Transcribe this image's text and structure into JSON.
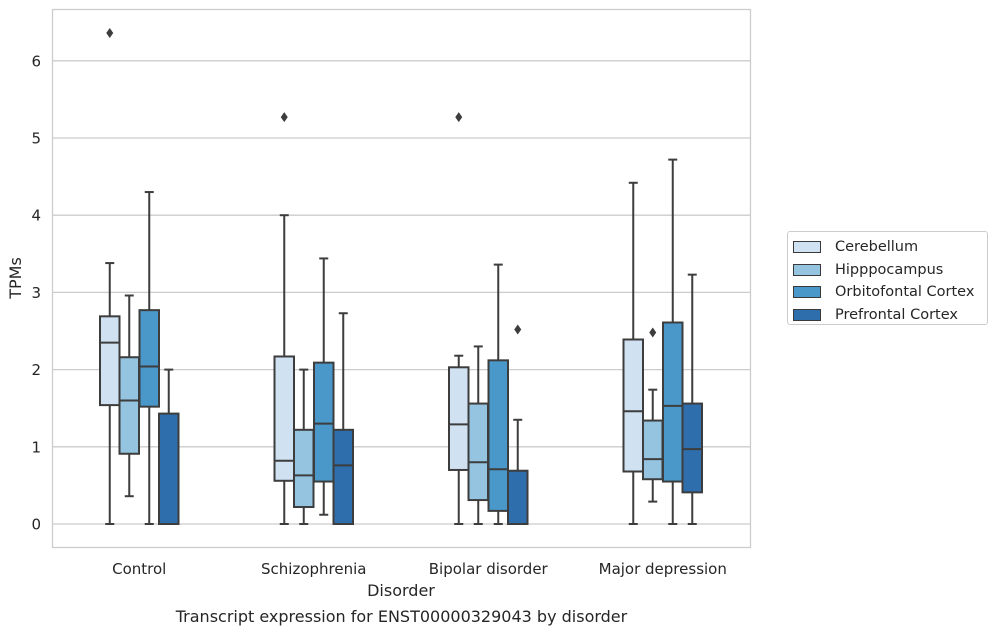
{
  "caption": "Transcript expression for ENST00000329043 by disorder",
  "legend": {
    "items": [
      {
        "label": "Cerebellum",
        "color": "#d0e1f2"
      },
      {
        "label": "Hipppocampus",
        "color": "#94c4df"
      },
      {
        "label": "Orbitofontal Cortex",
        "color": "#4a98c9"
      },
      {
        "label": "Prefrontal Cortex",
        "color": "#2e6eac"
      }
    ]
  },
  "chart_data": {
    "type": "box",
    "xlabel": "Disorder",
    "ylabel": "TPMs",
    "categories": [
      "Control",
      "Schizophrenia",
      "Bipolar disorder",
      "Major depression"
    ],
    "ylim": [
      -0.3,
      6.7
    ],
    "yticks": [
      0,
      1,
      2,
      3,
      4,
      5,
      6
    ],
    "grid": "horizontal",
    "legend_position": "right",
    "series": [
      {
        "name": "Cerebellum",
        "boxes": [
          {
            "whisker_low": 0,
            "q1": 1.54,
            "median": 2.35,
            "q3": 2.69,
            "whisker_high": 3.38,
            "outliers": [
              6.36
            ]
          },
          {
            "whisker_low": 0,
            "q1": 0.56,
            "median": 0.82,
            "q3": 2.17,
            "whisker_high": 4.0,
            "outliers": [
              5.27
            ]
          },
          {
            "whisker_low": 0,
            "q1": 0.7,
            "median": 1.29,
            "q3": 2.03,
            "whisker_high": 2.18,
            "outliers": [
              5.27
            ]
          },
          {
            "whisker_low": 0,
            "q1": 0.68,
            "median": 1.46,
            "q3": 2.39,
            "whisker_high": 4.42,
            "outliers": []
          }
        ]
      },
      {
        "name": "Hipppocampus",
        "boxes": [
          {
            "whisker_low": 0.36,
            "q1": 0.91,
            "median": 1.6,
            "q3": 2.16,
            "whisker_high": 2.96,
            "outliers": []
          },
          {
            "whisker_low": 0,
            "q1": 0.22,
            "median": 0.63,
            "q3": 1.22,
            "whisker_high": 2.0,
            "outliers": []
          },
          {
            "whisker_low": 0,
            "q1": 0.31,
            "median": 0.8,
            "q3": 1.56,
            "whisker_high": 2.3,
            "outliers": []
          },
          {
            "whisker_low": 0.29,
            "q1": 0.58,
            "median": 0.84,
            "q3": 1.34,
            "whisker_high": 1.74,
            "outliers": [
              2.48
            ]
          }
        ]
      },
      {
        "name": "Orbitofontal Cortex",
        "boxes": [
          {
            "whisker_low": 0,
            "q1": 1.52,
            "median": 2.04,
            "q3": 2.77,
            "whisker_high": 4.3,
            "outliers": []
          },
          {
            "whisker_low": 0.12,
            "q1": 0.55,
            "median": 1.3,
            "q3": 2.09,
            "whisker_high": 3.44,
            "outliers": []
          },
          {
            "whisker_low": 0,
            "q1": 0.17,
            "median": 0.71,
            "q3": 2.12,
            "whisker_high": 3.36,
            "outliers": []
          },
          {
            "whisker_low": 0,
            "q1": 0.55,
            "median": 1.53,
            "q3": 2.61,
            "whisker_high": 4.72,
            "outliers": []
          }
        ]
      },
      {
        "name": "Prefrontal Cortex",
        "boxes": [
          {
            "whisker_low": 0,
            "q1": 0,
            "median": 0,
            "q3": 1.43,
            "whisker_high": 2.0,
            "outliers": []
          },
          {
            "whisker_low": 0,
            "q1": 0,
            "median": 0.76,
            "q3": 1.22,
            "whisker_high": 2.73,
            "outliers": []
          },
          {
            "whisker_low": 0,
            "q1": 0,
            "median": 0,
            "q3": 0.69,
            "whisker_high": 1.35,
            "outliers": [
              2.52
            ]
          },
          {
            "whisker_low": 0,
            "q1": 0.41,
            "median": 0.97,
            "q3": 1.56,
            "whisker_high": 3.23,
            "outliers": []
          }
        ]
      }
    ]
  }
}
